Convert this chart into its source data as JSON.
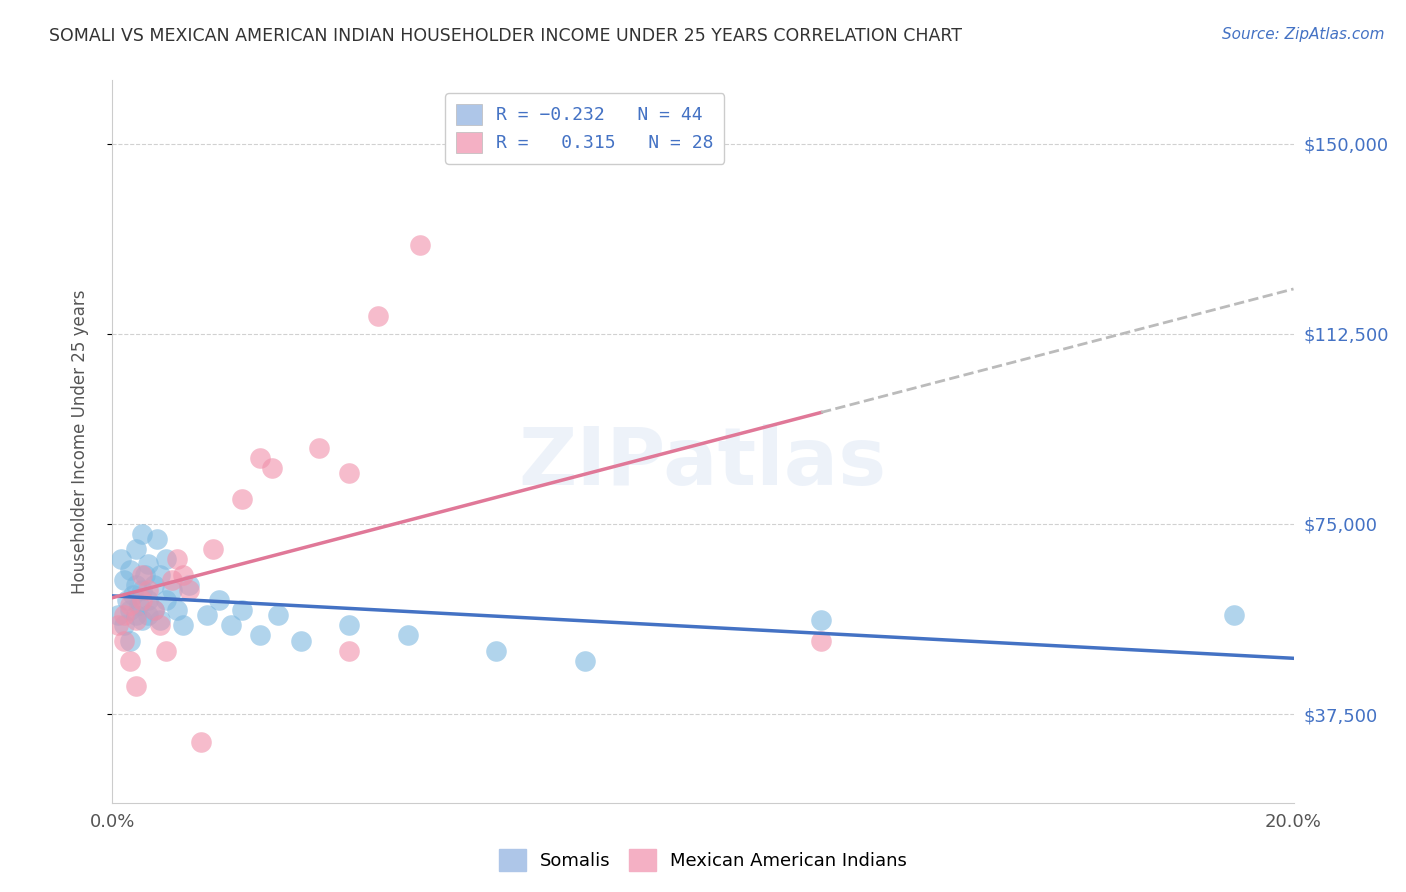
{
  "title": "SOMALI VS MEXICAN AMERICAN INDIAN HOUSEHOLDER INCOME UNDER 25 YEARS CORRELATION CHART",
  "source": "Source: ZipAtlas.com",
  "ylabel": "Householder Income Under 25 years",
  "xlim": [
    0.0,
    0.2
  ],
  "ylim": [
    20000,
    162500
  ],
  "yticks": [
    37500,
    75000,
    112500,
    150000
  ],
  "ytick_labels": [
    "$37,500",
    "$75,000",
    "$112,500",
    "$150,000"
  ],
  "xticks": [
    0.0,
    0.02,
    0.04,
    0.06,
    0.08,
    0.1,
    0.12,
    0.14,
    0.16,
    0.18,
    0.2
  ],
  "xtick_labels": [
    "0.0%",
    "",
    "",
    "",
    "",
    "",
    "",
    "",
    "",
    "",
    "20.0%"
  ],
  "watermark": "ZIPatlas",
  "somali_color": "#7db8e0",
  "mexican_color": "#f090aa",
  "somali_line_color": "#4472c4",
  "mexican_line_color": "#e07898",
  "grid_color": "#cccccc",
  "background_color": "#ffffff",
  "title_color": "#333333",
  "right_label_color": "#4472c4",
  "somali_x": [
    0.001,
    0.0015,
    0.002,
    0.002,
    0.0025,
    0.003,
    0.003,
    0.003,
    0.0035,
    0.004,
    0.004,
    0.004,
    0.0045,
    0.005,
    0.005,
    0.005,
    0.0055,
    0.006,
    0.006,
    0.006,
    0.007,
    0.007,
    0.0075,
    0.008,
    0.008,
    0.009,
    0.009,
    0.01,
    0.011,
    0.012,
    0.013,
    0.016,
    0.018,
    0.02,
    0.022,
    0.025,
    0.028,
    0.032,
    0.04,
    0.05,
    0.065,
    0.08,
    0.12,
    0.19
  ],
  "somali_y": [
    57000,
    68000,
    64000,
    55000,
    60000,
    58000,
    52000,
    66000,
    61000,
    57000,
    63000,
    70000,
    59000,
    56000,
    62000,
    73000,
    65000,
    60000,
    67000,
    57000,
    63000,
    58000,
    72000,
    65000,
    56000,
    60000,
    68000,
    62000,
    58000,
    55000,
    63000,
    57000,
    60000,
    55000,
    58000,
    53000,
    57000,
    52000,
    55000,
    53000,
    50000,
    48000,
    56000,
    57000
  ],
  "mexican_x": [
    0.001,
    0.002,
    0.002,
    0.003,
    0.003,
    0.004,
    0.004,
    0.005,
    0.005,
    0.006,
    0.007,
    0.008,
    0.009,
    0.01,
    0.011,
    0.012,
    0.013,
    0.015,
    0.017,
    0.022,
    0.025,
    0.027,
    0.035,
    0.04,
    0.04,
    0.045,
    0.052,
    0.12
  ],
  "mexican_y": [
    55000,
    57000,
    52000,
    59000,
    48000,
    56000,
    43000,
    60000,
    65000,
    62000,
    58000,
    55000,
    50000,
    64000,
    68000,
    65000,
    62000,
    32000,
    70000,
    80000,
    88000,
    86000,
    90000,
    85000,
    50000,
    116000,
    130000,
    52000
  ]
}
